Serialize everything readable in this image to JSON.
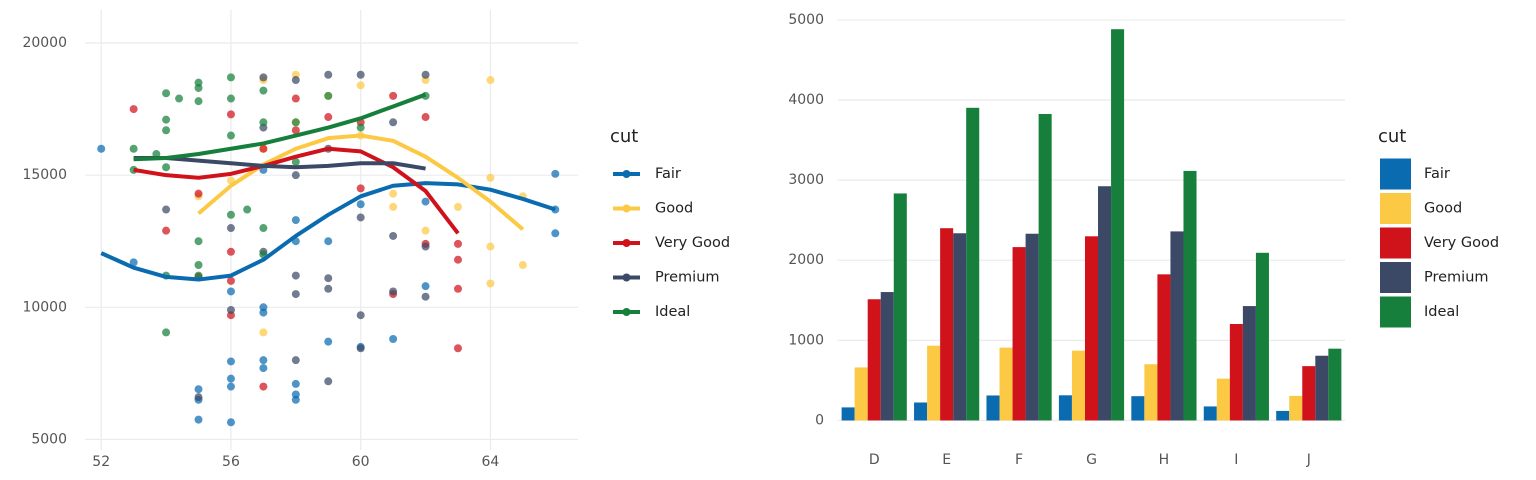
{
  "chart_data": [
    {
      "type": "scatter",
      "legend_title": "cut",
      "xlim": [
        51.5,
        66.7
      ],
      "ylim": [
        4600,
        21250
      ],
      "xticks": [
        52,
        56,
        60,
        64
      ],
      "yticks": [
        5000,
        10000,
        15000,
        20000
      ],
      "grid": true,
      "series": [
        {
          "name": "Fair",
          "color": "#0a6bb0",
          "x": [
            52,
            53,
            55,
            55,
            55,
            56,
            56,
            56,
            56,
            56,
            57,
            57,
            57,
            57,
            58,
            58,
            58,
            58,
            58,
            59,
            59,
            60,
            60,
            61,
            62,
            62,
            66,
            66,
            66,
            57
          ],
          "values": [
            16000,
            11700,
            6900,
            6500,
            5750,
            7300,
            7000,
            7950,
            5650,
            10600,
            10000,
            9800,
            8000,
            7700,
            7100,
            6700,
            6500,
            13300,
            12500,
            8700,
            12500,
            8500,
            13900,
            8800,
            10800,
            14000,
            15050,
            13700,
            12800,
            15200
          ],
          "smooth_x": [
            52,
            53,
            54,
            55,
            56,
            57,
            58,
            59,
            60,
            61,
            62,
            63,
            64,
            65,
            66
          ],
          "smooth_values": [
            12050,
            11500,
            11150,
            11050,
            11200,
            11800,
            12700,
            13500,
            14200,
            14600,
            14700,
            14650,
            14450,
            14100,
            13700
          ]
        },
        {
          "name": "Good",
          "color": "#fcc945",
          "x": [
            55,
            56,
            57,
            57,
            58,
            58,
            59,
            60,
            60,
            61,
            61,
            62,
            63,
            64,
            64,
            64,
            64,
            65,
            65,
            62,
            57
          ],
          "values": [
            14200,
            14800,
            9050,
            16000,
            18800,
            17000,
            18000,
            18400,
            16500,
            14300,
            13800,
            18600,
            13800,
            18600,
            14900,
            12300,
            10900,
            11600,
            14200,
            12900,
            18600
          ],
          "smooth_x": [
            55,
            56,
            57,
            58,
            59,
            60,
            61,
            62,
            63,
            64,
            65
          ],
          "smooth_values": [
            13550,
            14600,
            15400,
            16000,
            16400,
            16500,
            16300,
            15700,
            14900,
            14000,
            12950
          ]
        },
        {
          "name": "Very Good",
          "color": "#d0121b",
          "x": [
            53,
            54,
            55,
            56,
            56,
            56,
            56,
            57,
            57,
            58,
            58,
            59,
            60,
            60,
            61,
            61,
            62,
            62,
            63,
            63,
            63,
            63,
            55
          ],
          "values": [
            17500,
            12900,
            14300,
            12100,
            9700,
            11000,
            17300,
            7000,
            16000,
            16700,
            17900,
            17200,
            17000,
            14500,
            18000,
            10500,
            17200,
            12400,
            12400,
            11800,
            10700,
            8450,
            11150
          ],
          "smooth_x": [
            53,
            54,
            55,
            56,
            57,
            58,
            59,
            60,
            61,
            62,
            63
          ],
          "smooth_values": [
            15200,
            15000,
            14900,
            15050,
            15350,
            15700,
            16000,
            15900,
            15300,
            14400,
            12800
          ]
        },
        {
          "name": "Premium",
          "color": "#3b4966",
          "x": [
            54,
            55,
            56,
            56,
            57,
            57,
            57,
            58,
            58,
            58,
            58,
            59,
            59,
            59,
            59,
            60,
            60,
            60,
            60,
            61,
            61,
            61,
            62,
            62,
            62,
            58,
            59
          ],
          "values": [
            13700,
            6600,
            13000,
            9900,
            18700,
            16800,
            12100,
            18600,
            8000,
            11200,
            10500,
            18800,
            11100,
            10700,
            7200,
            18800,
            9700,
            8450,
            13400,
            17000,
            12700,
            10600,
            18800,
            12300,
            10400,
            15000,
            16000
          ],
          "smooth_x": [
            53,
            54,
            55,
            56,
            57,
            58,
            59,
            60,
            61,
            62
          ],
          "smooth_values": [
            15650,
            15650,
            15550,
            15450,
            15350,
            15300,
            15350,
            15450,
            15450,
            15250
          ]
        },
        {
          "name": "Ideal",
          "color": "#157f3b",
          "x": [
            53,
            53,
            54,
            54,
            54,
            54,
            54,
            54,
            55,
            55,
            55,
            55,
            55,
            55,
            56,
            56,
            56,
            56,
            57,
            57,
            57,
            57,
            58,
            58,
            59,
            60,
            62,
            53.7,
            54.4,
            56.5
          ],
          "values": [
            16000,
            15200,
            18100,
            17100,
            16700,
            11200,
            9050,
            15300,
            18500,
            18300,
            17800,
            12500,
            11200,
            11600,
            18700,
            17900,
            16500,
            13500,
            18200,
            17000,
            13000,
            12000,
            17000,
            15500,
            18000,
            16800,
            18000,
            15800,
            17900,
            13700
          ],
          "smooth_x": [
            53,
            54,
            55,
            56,
            57,
            58,
            59,
            60,
            61,
            62
          ],
          "smooth_values": [
            15600,
            15650,
            15800,
            16000,
            16200,
            16500,
            16800,
            17150,
            17600,
            18050
          ]
        }
      ]
    },
    {
      "type": "bar",
      "legend_title": "cut",
      "categories": [
        "D",
        "E",
        "F",
        "G",
        "H",
        "I",
        "J"
      ],
      "ylim": [
        -244,
        5124
      ],
      "yticks": [
        0,
        1000,
        2000,
        3000,
        4000,
        5000
      ],
      "grid": true,
      "series": [
        {
          "name": "Fair",
          "color": "#0a6bb0",
          "values": [
            163,
            224,
            312,
            314,
            303,
            175,
            119
          ]
        },
        {
          "name": "Good",
          "color": "#fcc945",
          "values": [
            662,
            933,
            909,
            871,
            702,
            522,
            307
          ]
        },
        {
          "name": "Very Good",
          "color": "#d0121b",
          "values": [
            1513,
            2400,
            2164,
            2299,
            1824,
            1204,
            678
          ]
        },
        {
          "name": "Premium",
          "color": "#3b4966",
          "values": [
            1603,
            2337,
            2331,
            2924,
            2360,
            1428,
            808
          ]
        },
        {
          "name": "Ideal",
          "color": "#157f3b",
          "values": [
            2834,
            3903,
            3826,
            4884,
            3115,
            2093,
            896
          ]
        }
      ]
    }
  ]
}
